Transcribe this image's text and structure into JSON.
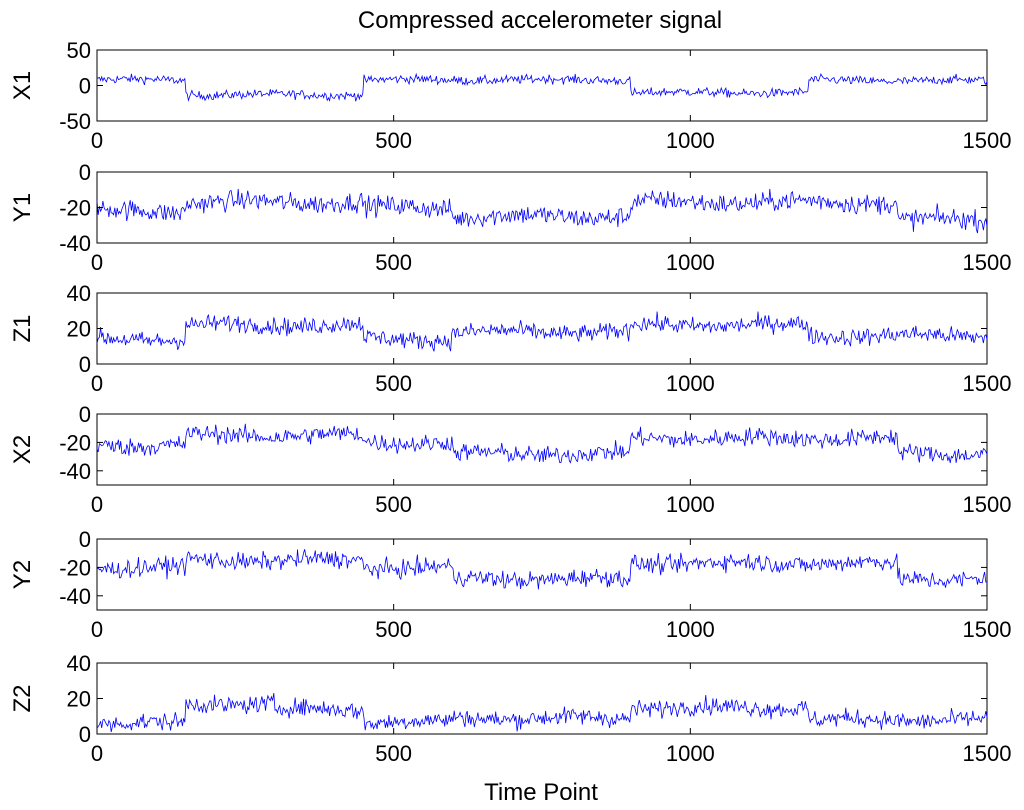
{
  "chart_data": {
    "type": "line",
    "title": "Compressed accelerometer signal",
    "xlabel": "Time Point",
    "x_range": [
      0,
      1500
    ],
    "x_ticks": [
      0,
      500,
      1000,
      1500
    ],
    "line_color": "#0000ff",
    "grid": false,
    "subplots": [
      {
        "ylabel": "X1",
        "ylim": [
          -50,
          50
        ],
        "y_ticks": [
          50,
          0,
          -50
        ],
        "segments": [
          [
            0,
            150,
            8
          ],
          [
            150,
            450,
            -13
          ],
          [
            450,
            900,
            8
          ],
          [
            900,
            1200,
            -10
          ],
          [
            1200,
            1500,
            7
          ]
        ],
        "noise": 4.5
      },
      {
        "ylabel": "Y1",
        "ylim": [
          -40,
          0
        ],
        "y_ticks": [
          0,
          -20,
          -40
        ],
        "segments": [
          [
            0,
            150,
            -22
          ],
          [
            150,
            450,
            -17
          ],
          [
            450,
            600,
            -20
          ],
          [
            600,
            900,
            -25
          ],
          [
            900,
            1350,
            -17
          ],
          [
            1350,
            1500,
            -27
          ]
        ],
        "noise": 4
      },
      {
        "ylabel": "Z1",
        "ylim": [
          0,
          40
        ],
        "y_ticks": [
          40,
          20,
          0
        ],
        "segments": [
          [
            0,
            150,
            14
          ],
          [
            150,
            450,
            22
          ],
          [
            450,
            600,
            14
          ],
          [
            600,
            900,
            18
          ],
          [
            900,
            1200,
            22
          ],
          [
            1200,
            1500,
            16
          ]
        ],
        "noise": 3.5
      },
      {
        "ylabel": "X2",
        "ylim": [
          -50,
          0
        ],
        "y_ticks": [
          0,
          -20,
          -40
        ],
        "segments": [
          [
            0,
            150,
            -22
          ],
          [
            150,
            450,
            -15
          ],
          [
            450,
            600,
            -20
          ],
          [
            600,
            900,
            -28
          ],
          [
            900,
            1350,
            -17
          ],
          [
            1350,
            1500,
            -28
          ]
        ],
        "noise": 4.5
      },
      {
        "ylabel": "Y2",
        "ylim": [
          -50,
          0
        ],
        "y_ticks": [
          0,
          -20,
          -40
        ],
        "segments": [
          [
            0,
            150,
            -20
          ],
          [
            150,
            450,
            -15
          ],
          [
            450,
            600,
            -20
          ],
          [
            600,
            900,
            -28
          ],
          [
            900,
            1350,
            -17
          ],
          [
            1350,
            1500,
            -28
          ]
        ],
        "noise": 4.5
      },
      {
        "ylabel": "Z2",
        "ylim": [
          0,
          40
        ],
        "y_ticks": [
          40,
          20,
          0
        ],
        "segments": [
          [
            0,
            150,
            6
          ],
          [
            150,
            300,
            17
          ],
          [
            300,
            450,
            14
          ],
          [
            450,
            600,
            7
          ],
          [
            600,
            900,
            9
          ],
          [
            900,
            1200,
            15
          ],
          [
            1200,
            1500,
            8
          ]
        ],
        "noise": 3.5
      }
    ]
  }
}
